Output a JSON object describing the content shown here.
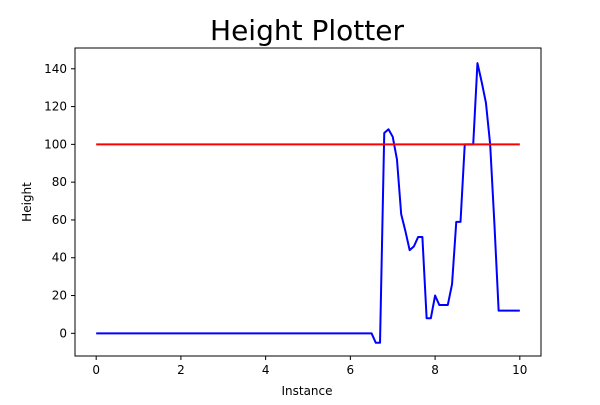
{
  "chart_data": {
    "type": "line",
    "title": "Height Plotter",
    "xlabel": "Instance",
    "ylabel": "Height",
    "xlim": [
      -0.5,
      10.5
    ],
    "ylim": [
      -12,
      151
    ],
    "xticks": [
      0,
      2,
      4,
      6,
      8,
      10
    ],
    "yticks": [
      0,
      20,
      40,
      60,
      80,
      100,
      120,
      140
    ],
    "grid": false,
    "legend": "none",
    "series": [
      {
        "color": "#0000ff",
        "x": [
          0,
          6.5,
          6.6,
          6.7,
          6.8,
          6.9,
          7.0,
          7.1,
          7.2,
          7.3,
          7.4,
          7.5,
          7.6,
          7.7,
          7.8,
          7.9,
          8.0,
          8.1,
          8.2,
          8.3,
          8.4,
          8.5,
          8.6,
          8.7,
          8.8,
          8.9,
          9.0,
          9.1,
          9.2,
          9.3,
          9.4,
          9.5,
          10.0
        ],
        "y": [
          0,
          0,
          -5,
          -5,
          106,
          108,
          104,
          92,
          63,
          54,
          44,
          46,
          51,
          51,
          8,
          8,
          20,
          15,
          15,
          15,
          26,
          59,
          59,
          100,
          100,
          100,
          143,
          133,
          122,
          100,
          58,
          12,
          12
        ]
      },
      {
        "color": "#ff0000",
        "x": [
          0,
          10
        ],
        "y": [
          100,
          100
        ]
      }
    ]
  }
}
